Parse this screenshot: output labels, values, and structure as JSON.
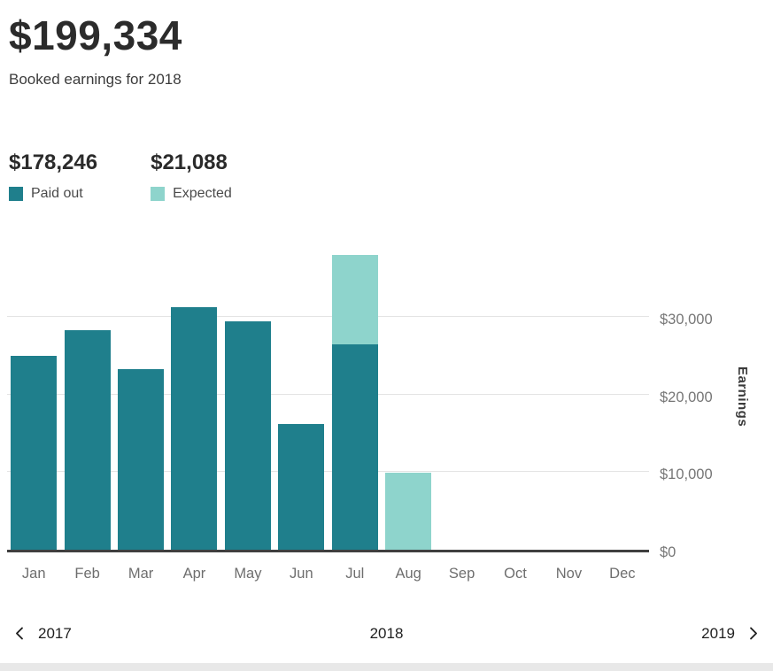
{
  "header": {
    "total": "$199,334",
    "subtitle": "Booked earnings for 2018"
  },
  "legend": {
    "paid": {
      "amount": "$178,246",
      "label": "Paid out",
      "color": "#1f7f8c"
    },
    "expected": {
      "amount": "$21,088",
      "label": "Expected",
      "color": "#8ed4cc"
    }
  },
  "nav": {
    "prev": "2017",
    "current": "2018",
    "next": "2019"
  },
  "chart_data": {
    "type": "bar",
    "stacked": true,
    "categories": [
      "Jan",
      "Feb",
      "Mar",
      "Apr",
      "May",
      "Jun",
      "Jul",
      "Aug",
      "Sep",
      "Oct",
      "Nov",
      "Dec"
    ],
    "series": [
      {
        "name": "Paid out",
        "color": "#1f7f8c",
        "values": [
          25000,
          28300,
          23300,
          31300,
          29500,
          16200,
          26500,
          0,
          0,
          0,
          0,
          0
        ]
      },
      {
        "name": "Expected",
        "color": "#8ed4cc",
        "values": [
          0,
          0,
          0,
          0,
          0,
          0,
          11600,
          9900,
          0,
          0,
          0,
          0
        ]
      }
    ],
    "ylabel": "Earnings",
    "xlabel": "",
    "ylim": [
      0,
      40000
    ],
    "yticks": [
      0,
      10000,
      20000,
      30000
    ],
    "ytick_labels": [
      "$0",
      "$10,000",
      "$20,000",
      "$30,000"
    ],
    "grid": true,
    "legend_position": "top-left"
  },
  "colors": {
    "grid": "#e4e4e4",
    "axis": "#3f3f3f",
    "tick_text": "#767676"
  }
}
